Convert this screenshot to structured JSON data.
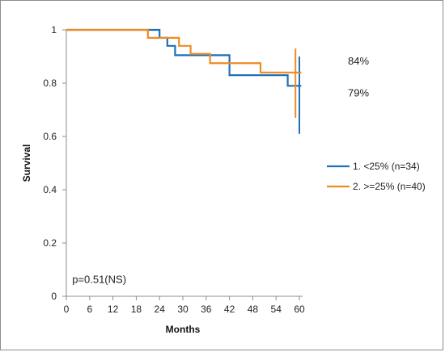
{
  "chart_data": {
    "type": "line",
    "step": true,
    "xlabel": "Months",
    "ylabel": "Survival",
    "xlim": [
      0,
      60
    ],
    "ylim": [
      0,
      1
    ],
    "xticks": [
      0,
      6,
      12,
      18,
      24,
      30,
      36,
      42,
      48,
      54,
      60
    ],
    "yticks": [
      0,
      0.2,
      0.4,
      0.6,
      0.8,
      1
    ],
    "ytick_labels": [
      "0",
      "0.2",
      "0.4",
      "0.6",
      "0.8",
      "1"
    ],
    "grid": false,
    "legend_position": "right",
    "series": [
      {
        "name": "1. <25% (n=34)",
        "color": "#1f6fb9",
        "x": [
          0,
          23,
          24,
          26,
          28,
          35,
          41,
          42,
          56,
          57,
          60.5
        ],
        "y": [
          1,
          1,
          0.97,
          0.94,
          0.905,
          0.905,
          0.905,
          0.83,
          0.83,
          0.79,
          0.79
        ],
        "ci_x": 60,
        "ci": [
          0.61,
          0.9
        ]
      },
      {
        "name": "2. >=25% (n=40)",
        "color": "#f08a24",
        "x": [
          0,
          19,
          21,
          24,
          29,
          32,
          37,
          41,
          50,
          60.5
        ],
        "y": [
          1,
          1,
          0.97,
          0.97,
          0.94,
          0.91,
          0.875,
          0.875,
          0.84,
          0.84
        ],
        "ci_x": 59,
        "ci": [
          0.67,
          0.93
        ]
      }
    ],
    "annotations": [
      {
        "text": "84%",
        "y": 0.885
      },
      {
        "text": "79%",
        "y": 0.765
      },
      {
        "text": "p=0.51(NS)",
        "x": 1.5,
        "y": 0.065
      }
    ]
  }
}
